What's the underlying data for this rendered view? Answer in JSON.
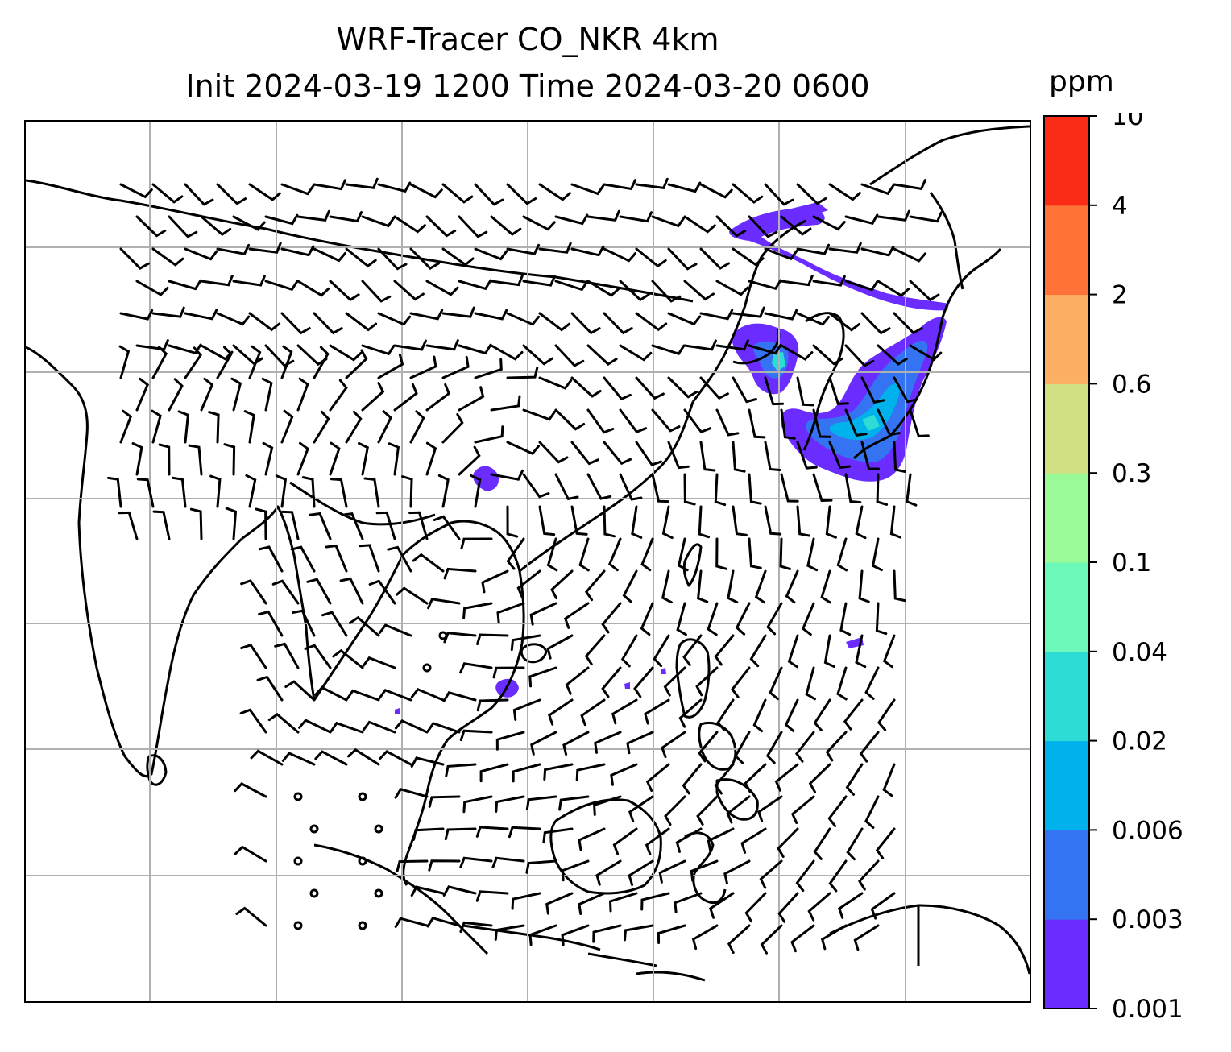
{
  "title": {
    "line1": "WRF-Tracer CO_NKR 4km",
    "line2": "Init 2024-03-19 1200 Time 2024-03-20 0600"
  },
  "colorbar": {
    "units": "ppm",
    "levels": [
      "0.001",
      "0.003",
      "0.006",
      "0.02",
      "0.04",
      "0.1",
      "0.3",
      "0.6",
      "2",
      "4",
      "10"
    ],
    "colors": [
      "#6a2cff",
      "#3474f2",
      "#00b2ec",
      "#2edcd6",
      "#6bf8b8",
      "#9bfa98",
      "#d0e083",
      "#fcae63",
      "#ff7238",
      "#fa2c18"
    ]
  },
  "map": {
    "gridlines": true,
    "coastline_color": "#000000",
    "grid_color": "#b0b0b0",
    "wind_barb_color": "#000000"
  }
}
